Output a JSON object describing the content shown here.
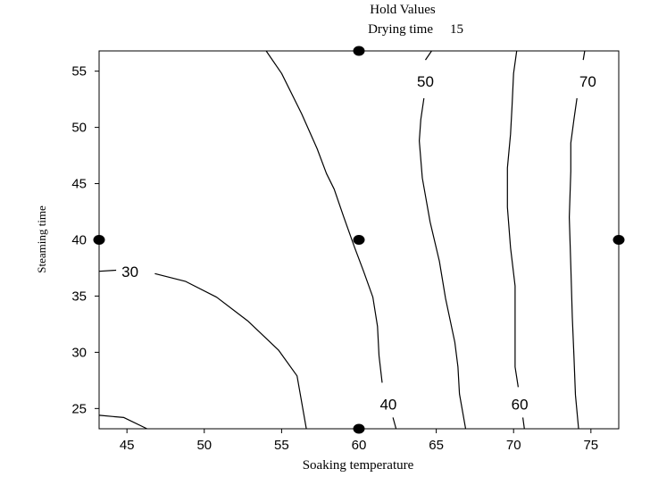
{
  "chart_data": {
    "type": "contour",
    "hold_values_title": "Hold Values",
    "hold_values": [
      {
        "name": "Drying time",
        "value": "15"
      }
    ],
    "xlabel": "Soaking temperature",
    "ylabel": "Steaming time",
    "xlim": [
      43.2,
      76.8
    ],
    "ylim": [
      23.2,
      56.8
    ],
    "xticks": [
      45,
      50,
      55,
      60,
      65,
      70,
      75
    ],
    "yticks": [
      25,
      30,
      35,
      40,
      45,
      50,
      55
    ],
    "design_points": [
      {
        "x": 60,
        "y": 56.8
      },
      {
        "x": 60,
        "y": 40
      },
      {
        "x": 43.2,
        "y": 40
      },
      {
        "x": 76.8,
        "y": 40
      },
      {
        "x": 60,
        "y": 23.2
      }
    ],
    "contours": [
      {
        "level": "30",
        "label_at": [
          45.2,
          37.2
        ],
        "segments": [
          [
            [
              43.2,
              37.2
            ],
            [
              44.3,
              37.3
            ]
          ],
          [
            [
              46.8,
              37.0
            ],
            [
              48.8,
              36.3
            ],
            [
              50.8,
              34.9
            ],
            [
              52.8,
              32.8
            ],
            [
              54.8,
              30.2
            ],
            [
              56.0,
              27.9
            ],
            [
              56.6,
              23.2
            ]
          ],
          [
            [
              43.2,
              24.4
            ],
            [
              44.8,
              24.2
            ],
            [
              46.3,
              23.2
            ]
          ]
        ]
      },
      {
        "level": "40",
        "label_at": [
          61.9,
          25.4
        ],
        "segments": [
          [
            [
              54.0,
              56.8
            ],
            [
              55.0,
              54.8
            ],
            [
              56.3,
              51.2
            ],
            [
              57.3,
              48.1
            ],
            [
              57.9,
              45.9
            ],
            [
              58.4,
              44.5
            ],
            [
              59.0,
              42.1
            ],
            [
              59.7,
              39.4
            ],
            [
              60.3,
              37.2
            ],
            [
              60.9,
              34.9
            ],
            [
              61.2,
              32.3
            ],
            [
              61.3,
              29.7
            ],
            [
              61.5,
              27.3
            ]
          ],
          [
            [
              62.2,
              24.2
            ],
            [
              62.4,
              23.2
            ]
          ]
        ]
      },
      {
        "level": "50",
        "label_at": [
          64.3,
          54.1
        ],
        "segments": [
          [
            [
              64.7,
              56.8
            ],
            [
              64.3,
              56.0
            ]
          ],
          [
            [
              64.2,
              52.6
            ],
            [
              64.0,
              50.7
            ],
            [
              63.9,
              48.8
            ],
            [
              64.1,
              45.5
            ],
            [
              64.6,
              41.6
            ],
            [
              65.2,
              38.1
            ],
            [
              65.6,
              34.8
            ],
            [
              66.2,
              30.9
            ],
            [
              66.4,
              28.7
            ],
            [
              66.5,
              26.3
            ],
            [
              66.9,
              23.2
            ]
          ]
        ]
      },
      {
        "level": "60",
        "label_at": [
          70.4,
          25.4
        ],
        "segments": [
          [
            [
              70.2,
              56.8
            ],
            [
              70.0,
              54.8
            ],
            [
              69.9,
              51.9
            ],
            [
              69.8,
              49.4
            ],
            [
              69.6,
              46.4
            ],
            [
              69.6,
              42.9
            ],
            [
              69.8,
              39.3
            ],
            [
              70.1,
              35.9
            ],
            [
              70.1,
              32.5
            ],
            [
              70.1,
              28.7
            ],
            [
              70.3,
              26.9
            ]
          ],
          [
            [
              70.6,
              24.2
            ],
            [
              70.7,
              23.2
            ]
          ]
        ]
      },
      {
        "level": "70",
        "label_at": [
          74.8,
          54.1
        ],
        "segments": [
          [
            [
              74.6,
              56.8
            ],
            [
              74.5,
              56.0
            ]
          ],
          [
            [
              74.1,
              52.6
            ],
            [
              73.9,
              50.7
            ],
            [
              73.7,
              48.6
            ],
            [
              73.7,
              46.1
            ],
            [
              73.6,
              42.0
            ],
            [
              73.7,
              37.7
            ],
            [
              73.8,
              33.1
            ],
            [
              73.9,
              29.7
            ],
            [
              74.0,
              26.2
            ],
            [
              74.2,
              23.2
            ]
          ]
        ]
      }
    ],
    "grid": false,
    "legend": false
  }
}
